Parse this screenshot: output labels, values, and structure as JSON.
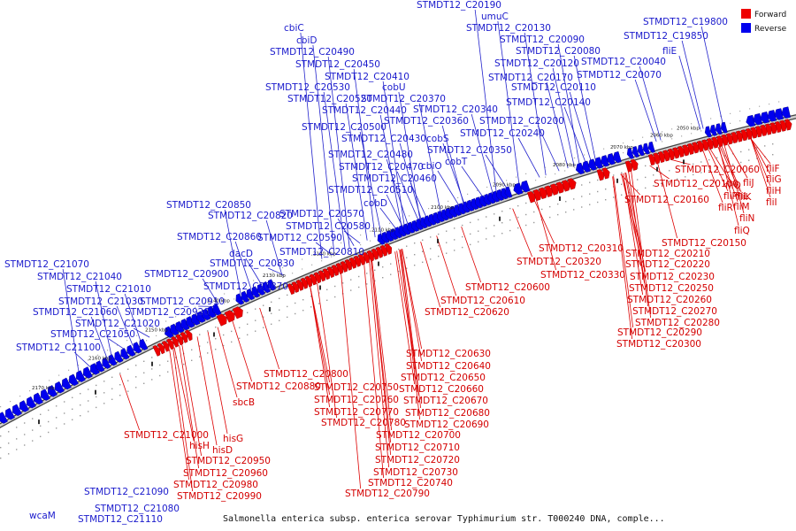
{
  "caption": "Salmonella enterica subsp. enterica serovar Typhimurium str. T000240 DNA, comple...",
  "legend": [
    {
      "label": "Forward",
      "color": "#ee0000"
    },
    {
      "label": "Reverse",
      "color": "#0000ee"
    }
  ],
  "colors": {
    "forward": "#ee0000",
    "reverse": "#0000ee",
    "backbone": "#777777"
  },
  "ticks": [
    "2050 kbp",
    "2060 kbp",
    "2070 kbp",
    "2080 kbp",
    "2090 kbp",
    "2100 kbp",
    "2110 kbp",
    "2120 kbp",
    "2130 kbp",
    "2140 kbp",
    "2150 kbp",
    "2160 kbp",
    "2170 kbp"
  ],
  "reverse_labels": [
    "STMDT12_C20190",
    "umuC",
    "STMDT12_C20130",
    "STMDT12_C20090",
    "STMDT12_C20080",
    "STMDT12_C20120",
    "STMDT12_C20040",
    "STMDT12_C20170",
    "STMDT12_C20070",
    "STMDT12_C20110",
    "STMDT12_C20140",
    "STMDT12_C20340",
    "STMDT12_C20200",
    "STMDT12_C20240",
    "STMDT12_C19800",
    "STMDT12_C19850",
    "fliE",
    "cbiC",
    "cbiD",
    "STMDT12_C20490",
    "STMDT12_C20450",
    "STMDT12_C20410",
    "STMDT12_C20530",
    "cobU",
    "STMDT12_C20520",
    "STMDT12_C20370",
    "STMDT12_C20440",
    "STMDT12_C20360",
    "STMDT12_C20500",
    "STMDT12_C20430",
    "cobS",
    "STMDT12_C20350",
    "STMDT12_C20480",
    "cobT",
    "STMDT12_C20470",
    "cbiO",
    "STMDT12_C20460",
    "STMDT12_C20510",
    "cobD",
    "STMDT12_C20850",
    "STMDT12_C20570",
    "STMDT12_C20820",
    "STMDT12_C20580",
    "STMDT12_C20860",
    "STMDT12_C20590",
    "STMDT12_C20810",
    "dacD",
    "STMDT12_C20830",
    "STMDT12_C20900",
    "STMDT12_C20870",
    "STMDT12_C21070",
    "STMDT12_C21040",
    "STMDT12_C21010",
    "STMDT12_C21030",
    "STMDT12_C20910",
    "STMDT12_C21060",
    "STMDT12_C20920",
    "STMDT12_C21020",
    "STMDT12_C21050",
    "STMDT12_C21100",
    "STMDT12_C21090",
    "STMDT12_C21080",
    "STMDT12_C21110",
    "wcaM"
  ],
  "forward_labels": [
    "fliF",
    "fliG",
    "fliH",
    "fliI",
    "fliJ",
    "fliK",
    "fliL",
    "fliM",
    "fliN",
    "fliO",
    "fliP",
    "fliQ",
    "fliR",
    "STMDT12_C20060",
    "STMDT12_C20100",
    "STMDT12_C20160",
    "STMDT12_C20150",
    "STMDT12_C20310",
    "STMDT12_C20210",
    "STMDT12_C20320",
    "STMDT12_C20220",
    "STMDT12_C20330",
    "STMDT12_C20230",
    "STMDT12_C20250",
    "STMDT12_C20260",
    "STMDT12_C20270",
    "STMDT12_C20280",
    "STMDT12_C20290",
    "STMDT12_C20300",
    "STMDT12_C20600",
    "STMDT12_C20610",
    "STMDT12_C20620",
    "STMDT12_C20630",
    "STMDT12_C20640",
    "STMDT12_C20650",
    "STMDT12_C20660",
    "STMDT12_C20670",
    "STMDT12_C20680",
    "STMDT12_C20690",
    "STMDT12_C20700",
    "STMDT12_C20710",
    "STMDT12_C20720",
    "STMDT12_C20730",
    "STMDT12_C20740",
    "STMDT12_C20790",
    "STMDT12_C20800",
    "STMDT12_C20880",
    "STMDT12_C20750",
    "STMDT12_C20760",
    "STMDT12_C20770",
    "STMDT12_C20780",
    "sbcB",
    "hisG",
    "hisD",
    "hisH",
    "STMDT12_C21000",
    "STMDT12_C20950",
    "STMDT12_C20960",
    "STMDT12_C20980",
    "STMDT12_C20990"
  ]
}
